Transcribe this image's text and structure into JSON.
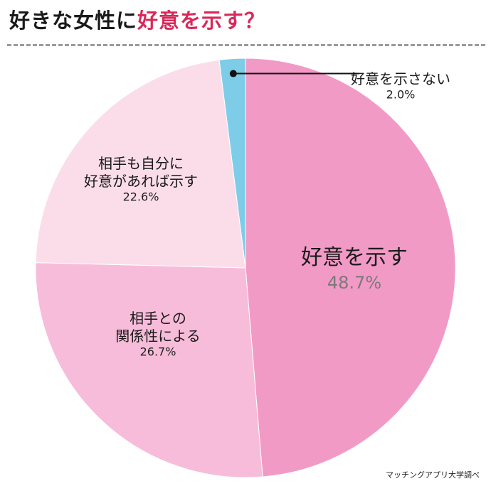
{
  "title": {
    "part1": "好きな女性に",
    "part2": "好意を示す？"
  },
  "colors": {
    "accent": "#d9285a",
    "slice_show": "#f29ac6",
    "slice_relation": "#f7bcd9",
    "slice_ifreturned": "#fbdde9",
    "slice_noshow": "#7ecde8"
  },
  "source": "マッチングアプリ大学調べ",
  "chart_data": {
    "type": "pie",
    "title": "",
    "slices": [
      {
        "label_lines": [
          "好意を示す"
        ],
        "value": 48.7,
        "value_label": "48.7%",
        "color": "#f29ac6"
      },
      {
        "label_lines": [
          "相手との",
          "関係性による"
        ],
        "value": 26.7,
        "value_label": "26.7%",
        "color": "#f7bcd9"
      },
      {
        "label_lines": [
          "相手も自分に",
          "好意があれば示す"
        ],
        "value": 22.6,
        "value_label": "22.6%",
        "color": "#fbdde9"
      },
      {
        "label_lines": [
          "好意を示さない"
        ],
        "value": 2.0,
        "value_label": "2.0%",
        "color": "#7ecde8"
      }
    ]
  }
}
